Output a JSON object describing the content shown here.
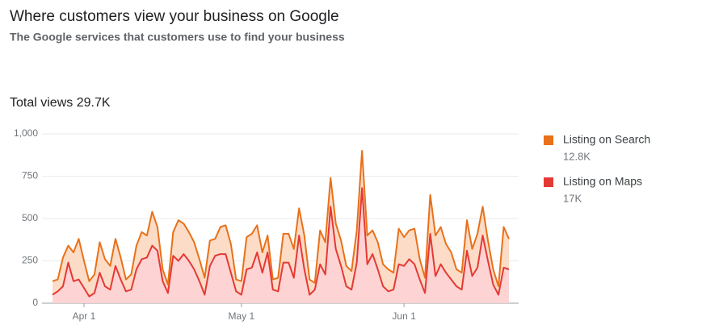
{
  "header": {
    "title": "Where customers view your business on Google",
    "subtitle": "The Google services that customers use to find your business",
    "total_label": "Total views",
    "total": "29.7K"
  },
  "chart_data": {
    "type": "stacked-area",
    "categories": [
      null,
      null,
      null,
      null,
      null,
      null,
      "Apr 1",
      null,
      null,
      null,
      null,
      null,
      null,
      null,
      null,
      null,
      null,
      null,
      null,
      null,
      null,
      null,
      null,
      null,
      null,
      null,
      null,
      null,
      null,
      null,
      null,
      null,
      null,
      null,
      null,
      null,
      "May 1",
      null,
      null,
      null,
      null,
      null,
      null,
      null,
      null,
      null,
      null,
      null,
      null,
      null,
      null,
      null,
      null,
      null,
      null,
      null,
      null,
      null,
      null,
      null,
      null,
      null,
      null,
      null,
      null,
      null,
      null,
      "Jun 1",
      null,
      null,
      null,
      null,
      null,
      null,
      null,
      null,
      null,
      null,
      null,
      null,
      null,
      null,
      null,
      null,
      null,
      null,
      null,
      null
    ],
    "series": [
      {
        "name": "Listing on Search",
        "total": "12.8K",
        "color": "#e8711a",
        "fill": "#fcdcc6",
        "values": [
          80,
          70,
          170,
          100,
          170,
          240,
          160,
          90,
          110,
          180,
          160,
          140,
          160,
          130,
          70,
          90,
          140,
          160,
          130,
          200,
          140,
          70,
          50,
          140,
          240,
          180,
          170,
          160,
          130,
          100,
          150,
          100,
          160,
          170,
          170,
          70,
          80,
          190,
          200,
          160,
          120,
          100,
          60,
          80,
          170,
          170,
          170,
          160,
          200,
          90,
          40,
          200,
          190,
          170,
          150,
          150,
          120,
          110,
          190,
          220,
          170,
          140,
          160,
          130,
          130,
          100,
          210,
          170,
          170,
          210,
          120,
          90,
          230,
          240,
          220,
          170,
          160,
          100,
          100,
          180,
          160,
          200,
          170,
          120,
          90,
          50,
          240,
          180
        ]
      },
      {
        "name": "Listing on Maps",
        "total": "17K",
        "color": "#e53935",
        "fill": "#fdd3d3",
        "values": [
          50,
          70,
          100,
          240,
          130,
          140,
          90,
          40,
          60,
          180,
          100,
          80,
          220,
          140,
          70,
          80,
          200,
          260,
          270,
          340,
          310,
          130,
          60,
          280,
          250,
          290,
          250,
          200,
          130,
          50,
          220,
          280,
          290,
          290,
          180,
          70,
          50,
          200,
          210,
          300,
          180,
          300,
          80,
          70,
          240,
          240,
          150,
          400,
          200,
          50,
          80,
          230,
          170,
          570,
          320,
          220,
          100,
          80,
          240,
          680,
          230,
          290,
          200,
          100,
          70,
          80,
          230,
          220,
          260,
          230,
          140,
          60,
          410,
          160,
          230,
          180,
          140,
          100,
          80,
          310,
          160,
          210,
          400,
          250,
          110,
          50,
          210,
          200
        ]
      }
    ],
    "ylim": [
      0,
      1000
    ],
    "yticks": [
      0,
      250,
      500,
      750,
      {
        "value": 1000,
        "label": "1,000"
      }
    ],
    "grid": true
  }
}
